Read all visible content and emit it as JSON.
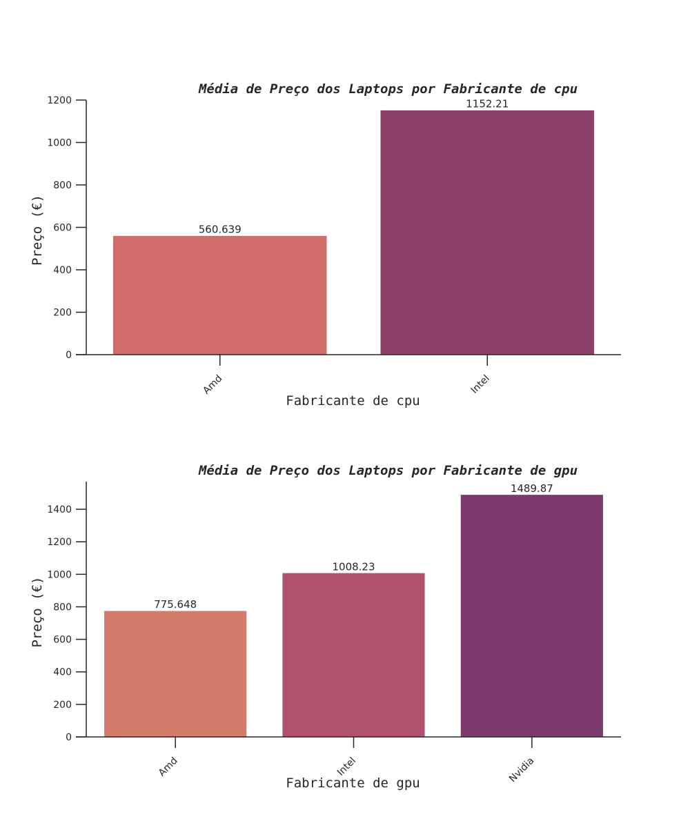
{
  "chart_data": [
    {
      "type": "bar",
      "title": "Média de Preço dos Laptops por Fabricante de cpu",
      "xlabel": "Fabricante de cpu",
      "ylabel": "Preço (€)",
      "categories": [
        "Amd",
        "Intel"
      ],
      "values": [
        560.639,
        1152.21
      ],
      "value_labels": [
        "560.639",
        "1152.21"
      ],
      "colors": [
        "#cf6c6c",
        "#8c426b"
      ],
      "ylim": [
        0,
        1200
      ],
      "yticks": [
        0,
        200,
        400,
        600,
        800,
        1000,
        1200
      ],
      "grid": false,
      "legend": "none"
    },
    {
      "type": "bar",
      "title": "Média de Preço dos Laptops por Fabricante de gpu",
      "xlabel": "Fabricante de gpu",
      "ylabel": "Preço (€)",
      "categories": [
        "Amd",
        "Intel",
        "Nvidia"
      ],
      "values": [
        775.648,
        1008.23,
        1489.87
      ],
      "value_labels": [
        "775.648",
        "1008.23",
        "1489.87"
      ],
      "colors": [
        "#d37b6d",
        "#b0526c",
        "#7b3a6b"
      ],
      "ylim": [
        0,
        1570
      ],
      "yticks": [
        0,
        200,
        400,
        600,
        800,
        1000,
        1200,
        1400
      ],
      "grid": false,
      "legend": "none"
    }
  ]
}
